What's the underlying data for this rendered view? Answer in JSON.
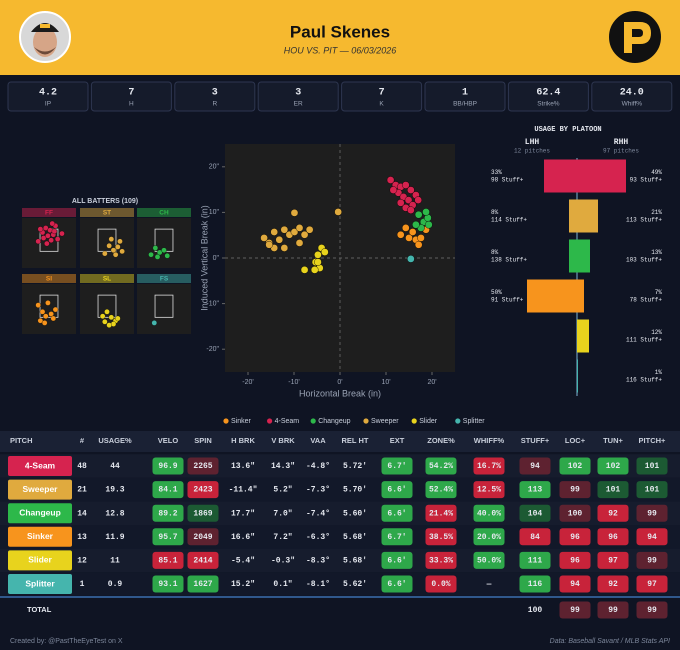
{
  "header": {
    "title": "Paul Skenes",
    "subtitle": "HOU VS. PIT — 06/03/2026"
  },
  "stats": [
    {
      "value": "4.2",
      "label": "IP"
    },
    {
      "value": "7",
      "label": "H"
    },
    {
      "value": "3",
      "label": "R"
    },
    {
      "value": "3",
      "label": "ER"
    },
    {
      "value": "7",
      "label": "K"
    },
    {
      "value": "1",
      "label": "BB/HBP"
    },
    {
      "value": "62.4",
      "label": "Strike%"
    },
    {
      "value": "24.0",
      "label": "Whiff%"
    }
  ],
  "zones": {
    "title": "ALL BATTERS (109)",
    "xlim": [
      -2.5,
      2.5
    ],
    "zlim": [
      0,
      4.5
    ],
    "panels": [
      {
        "label": "FF",
        "color": "#d6234f",
        "points": [
          [
            -0.6,
            3.2
          ],
          [
            -0.3,
            3.6
          ],
          [
            0.1,
            3.4
          ],
          [
            0.4,
            3.0
          ],
          [
            -0.5,
            2.7
          ],
          [
            0.2,
            2.5
          ],
          [
            0.6,
            3.8
          ],
          [
            -0.1,
            2.9
          ],
          [
            0.8,
            2.6
          ],
          [
            -0.8,
            3.5
          ],
          [
            0.3,
            4.0
          ],
          [
            -0.2,
            2.2
          ],
          [
            0.5,
            3.3
          ],
          [
            1.2,
            3.1
          ],
          [
            -1.0,
            2.4
          ]
        ]
      },
      {
        "label": "ST",
        "color": "#e0aa3e",
        "points": [
          [
            0.2,
            2.0
          ],
          [
            0.6,
            1.6
          ],
          [
            1.0,
            1.9
          ],
          [
            0.8,
            1.2
          ],
          [
            1.4,
            1.5
          ],
          [
            -0.2,
            1.3
          ],
          [
            0.4,
            2.6
          ],
          [
            1.2,
            2.4
          ]
        ]
      },
      {
        "label": "CH",
        "color": "#2db84a",
        "points": [
          [
            -0.4,
            1.4
          ],
          [
            -0.8,
            1.8
          ],
          [
            -0.6,
            1.0
          ],
          [
            0.0,
            1.6
          ],
          [
            -1.2,
            1.2
          ],
          [
            0.3,
            1.1
          ]
        ]
      },
      {
        "label": "SI",
        "color": "#f7941d",
        "points": [
          [
            -1.0,
            2.6
          ],
          [
            -0.6,
            2.0
          ],
          [
            -0.3,
            1.6
          ],
          [
            0.2,
            1.8
          ],
          [
            0.4,
            1.4
          ],
          [
            -0.1,
            2.8
          ],
          [
            -0.8,
            1.2
          ],
          [
            0.6,
            2.2
          ],
          [
            -0.4,
            1.0
          ]
        ]
      },
      {
        "label": "SL",
        "color": "#e8d31d",
        "points": [
          [
            0.0,
            2.0
          ],
          [
            0.4,
            1.5
          ],
          [
            0.8,
            1.2
          ],
          [
            -0.2,
            1.1
          ],
          [
            0.6,
            0.9
          ],
          [
            1.0,
            1.4
          ],
          [
            0.2,
            0.8
          ],
          [
            -0.4,
            1.6
          ]
        ]
      },
      {
        "label": "FS",
        "color": "#45b5ad",
        "points": [
          [
            -0.9,
            1.0
          ]
        ]
      }
    ]
  },
  "movement": {
    "xlabel": "Horizontal Break (in)",
    "ylabel": "Induced Vertical Break (in)",
    "xlim": [
      -25,
      25
    ],
    "ylim": [
      -25,
      25
    ],
    "xticks": [
      {
        "value": -20,
        "label": "-20'"
      },
      {
        "value": -10,
        "label": "-10'"
      },
      {
        "value": 0,
        "label": "0'"
      },
      {
        "value": 10,
        "label": "10'"
      },
      {
        "value": 20,
        "label": "20'"
      }
    ],
    "yticks": [
      {
        "value": 20,
        "label": "20\""
      },
      {
        "value": 10,
        "label": "10\""
      },
      {
        "value": 0,
        "label": "0\""
      },
      {
        "value": -10,
        "label": "-10\""
      },
      {
        "value": -20,
        "label": "-20\""
      }
    ],
    "series": [
      {
        "name": "Sinker",
        "color": "#f7941d",
        "x": [
          14.3,
          13.2,
          16.5,
          17.6,
          17.1,
          18.7,
          15.0,
          15.8
        ],
        "y": [
          6.6,
          5.1,
          4.0,
          4.4,
          2.9,
          6.2,
          4.4,
          5.7
        ]
      },
      {
        "name": "4-Seam",
        "color": "#d6234f",
        "x": [
          11.0,
          12.1,
          13.2,
          14.3,
          15.4,
          12.7,
          13.8,
          14.9,
          15.8,
          16.5,
          11.6,
          14.3,
          15.4,
          17.0,
          13.2
        ],
        "y": [
          17.1,
          16.0,
          15.6,
          16.0,
          14.9,
          14.3,
          13.4,
          12.7,
          11.6,
          13.8,
          14.9,
          11.0,
          10.5,
          12.7,
          12.1
        ]
      },
      {
        "name": "Changeup",
        "color": "#2db84a",
        "x": [
          17.1,
          18.2,
          19.1,
          17.6,
          18.7,
          16.5,
          19.3
        ],
        "y": [
          9.5,
          7.9,
          8.8,
          6.6,
          10.1,
          7.3,
          7.3
        ]
      },
      {
        "name": "Sweeper",
        "color": "#e0aa3e",
        "x": [
          -16.5,
          -15.4,
          -14.3,
          -13.2,
          -12.1,
          -11.0,
          -9.9,
          -8.8,
          -7.7,
          -8.8,
          -14.3,
          -15.4,
          -9.9,
          -0.4,
          -6.6,
          -12.1
        ],
        "y": [
          4.4,
          3.3,
          5.7,
          4.0,
          6.2,
          5.1,
          5.7,
          6.6,
          5.1,
          3.3,
          2.2,
          2.9,
          9.9,
          10.1,
          6.2,
          2.2
        ]
      },
      {
        "name": "Slider",
        "color": "#e8d31d",
        "x": [
          -4.0,
          -4.8,
          -5.3,
          -4.4,
          -5.5,
          -7.7,
          -4.8,
          -3.3
        ],
        "y": [
          2.2,
          0.7,
          -0.9,
          -2.2,
          -2.6,
          -2.6,
          -0.9,
          1.3
        ]
      },
      {
        "name": "Splitter",
        "color": "#45b5ad",
        "x": [
          15.4
        ],
        "y": [
          -0.2
        ]
      }
    ]
  },
  "platoon": {
    "title": "USAGE BY PLATOON",
    "lhh": {
      "label": "LHH",
      "count": "12 pitches"
    },
    "rhh": {
      "label": "RHH",
      "count": "97 pitches"
    },
    "rows": [
      {
        "color": "#d6234f",
        "lhh": 33,
        "lhh_label": "33%",
        "lhh_stuff": "98 Stuff+",
        "rhh": 49,
        "rhh_label": "49%",
        "rhh_stuff": "93 Stuff+"
      },
      {
        "color": "#e0aa3e",
        "lhh": 8,
        "lhh_label": "8%",
        "lhh_stuff": "114 Stuff+",
        "rhh": 21,
        "rhh_label": "21%",
        "rhh_stuff": "113 Stuff+"
      },
      {
        "color": "#2db84a",
        "lhh": 8,
        "lhh_label": "8%",
        "lhh_stuff": "138 Stuff+",
        "rhh": 13,
        "rhh_label": "13%",
        "rhh_stuff": "103 Stuff+"
      },
      {
        "color": "#f7941d",
        "lhh": 50,
        "lhh_label": "50%",
        "lhh_stuff": "91 Stuff+",
        "rhh": 7,
        "rhh_label": "7%",
        "rhh_stuff": "78 Stuff+"
      },
      {
        "color": "#e8d31d",
        "rhh": 12,
        "rhh_label": "12%",
        "rhh_stuff": "111 Stuff+"
      },
      {
        "color": "#45b5ad",
        "rhh": 1,
        "rhh_label": "1%",
        "rhh_stuff": "116 Stuff+"
      }
    ]
  },
  "table": {
    "columns": [
      "PITCH",
      "#",
      "USAGE%",
      "VELO",
      "SPIN",
      "H BRK",
      "V BRK",
      "VAA",
      "REL HT",
      "EXT",
      "ZONE%",
      "WHIFF%",
      "STUFF+",
      "LOC+",
      "TUN+",
      "PITCH+"
    ],
    "rows": [
      {
        "pitch": "4-Seam",
        "color": "#d6234f",
        "cells": [
          "48",
          "44",
          "96.9",
          "2265",
          "13.6\"",
          "14.3\"",
          "-4.8°",
          "5.72'",
          "6.7'",
          "54.2%",
          "16.7%",
          "94",
          "102",
          "102",
          "101"
        ],
        "tones": [
          null,
          null,
          "#2ea84a",
          "#5e2230",
          null,
          null,
          null,
          null,
          "#2ea84a",
          "#2ea84a",
          "#c8233a",
          "#5e2230",
          "#2ea84a",
          "#2ea84a",
          "#1c5a33"
        ]
      },
      {
        "pitch": "Sweeper",
        "color": "#e0aa3e",
        "cells": [
          "21",
          "19.3",
          "84.1",
          "2423",
          "-11.4\"",
          "5.2\"",
          "-7.3°",
          "5.70'",
          "6.6'",
          "52.4%",
          "12.5%",
          "113",
          "99",
          "101",
          "101"
        ],
        "tones": [
          null,
          null,
          "#2ea84a",
          "#c8233a",
          null,
          null,
          null,
          null,
          "#2ea84a",
          "#2ea84a",
          "#c8233a",
          "#2ea84a",
          "#5e2230",
          "#1c5a33",
          "#1c5a33"
        ]
      },
      {
        "pitch": "Changeup",
        "color": "#2db84a",
        "cells": [
          "14",
          "12.8",
          "89.2",
          "1869",
          "17.7\"",
          "7.0\"",
          "-7.4°",
          "5.60'",
          "6.6'",
          "21.4%",
          "40.0%",
          "104",
          "100",
          "92",
          "99"
        ],
        "tones": [
          null,
          null,
          "#2ea84a",
          "#1c5a33",
          null,
          null,
          null,
          null,
          "#2ea84a",
          "#c8233a",
          "#2ea84a",
          "#1c5a33",
          "#5e2230",
          "#c8233a",
          "#5e2230"
        ]
      },
      {
        "pitch": "Sinker",
        "color": "#f7941d",
        "cells": [
          "13",
          "11.9",
          "95.7",
          "2049",
          "16.6\"",
          "7.2\"",
          "-6.3°",
          "5.68'",
          "6.7'",
          "38.5%",
          "20.0%",
          "84",
          "96",
          "96",
          "94"
        ],
        "tones": [
          null,
          null,
          "#2ea84a",
          "#5e2230",
          null,
          null,
          null,
          null,
          "#2ea84a",
          "#c8233a",
          "#2ea84a",
          "#c8233a",
          "#c8233a",
          "#c8233a",
          "#c8233a"
        ]
      },
      {
        "pitch": "Slider",
        "color": "#e8d31d",
        "cells": [
          "12",
          "11",
          "85.1",
          "2414",
          "-5.4\"",
          "-0.3\"",
          "-8.3°",
          "5.68'",
          "6.6'",
          "33.3%",
          "50.0%",
          "111",
          "96",
          "97",
          "99"
        ],
        "tones": [
          null,
          null,
          "#c8233a",
          "#c8233a",
          null,
          null,
          null,
          null,
          "#2ea84a",
          "#c8233a",
          "#2ea84a",
          "#2ea84a",
          "#c8233a",
          "#c8233a",
          "#5e2230"
        ]
      },
      {
        "pitch": "Splitter",
        "color": "#45b5ad",
        "cells": [
          "1",
          "0.9",
          "93.1",
          "1627",
          "15.2\"",
          "0.1\"",
          "-8.1°",
          "5.62'",
          "6.6'",
          "0.0%",
          "—",
          "116",
          "94",
          "92",
          "97"
        ],
        "tones": [
          null,
          null,
          "#2ea84a",
          "#2ea84a",
          null,
          null,
          null,
          null,
          "#2ea84a",
          "#c8233a",
          null,
          "#2ea84a",
          "#c8233a",
          "#c8233a",
          "#c8233a"
        ]
      }
    ],
    "total": {
      "label": "TOTAL",
      "cells": [
        null,
        null,
        null,
        null,
        null,
        null,
        null,
        null,
        null,
        null,
        null,
        "100",
        "99",
        "99",
        "99"
      ],
      "tones": [
        null,
        null,
        null,
        null,
        null,
        null,
        null,
        null,
        null,
        null,
        null,
        null,
        "#5e2230",
        "#5e2230",
        "#5e2230"
      ]
    }
  },
  "footer": {
    "left": "Created by: @PastTheEyeTest on X",
    "right": "Data: Baseball Savant / MLB Stats API"
  }
}
